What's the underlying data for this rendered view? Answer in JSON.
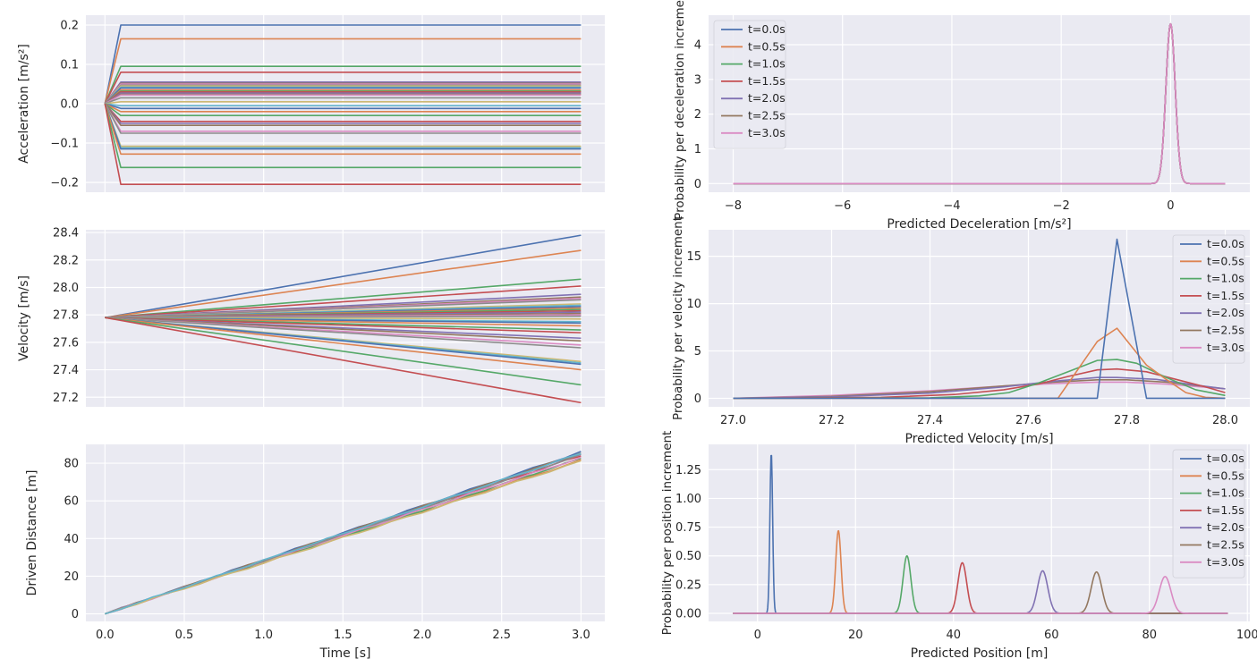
{
  "colors": {
    "palette": [
      "#4c72b0",
      "#dd8452",
      "#55a868",
      "#c44e52",
      "#8172b3",
      "#937860",
      "#da8bc3",
      "#8c8c8c",
      "#ccb974",
      "#64b5cd"
    ],
    "axes_bg": "#eaeaf2",
    "grid": "#ffffff",
    "text": "#262626"
  },
  "chart_data": [
    {
      "id": "acc",
      "type": "line",
      "xlabel": "",
      "ylabel": "Acceleration [m/s²]",
      "xlim": [
        -0.12,
        3.15
      ],
      "ylim": [
        -0.225,
        0.225
      ],
      "xticks": [
        0.0,
        0.5,
        1.0,
        1.5,
        2.0,
        2.5,
        3.0
      ],
      "xtick_labels": [],
      "yticks": [
        -0.2,
        -0.1,
        0.0,
        0.1,
        0.2
      ],
      "ytick_labels": [
        "−0.2",
        "−0.1",
        "0.0",
        "0.1",
        "0.2"
      ],
      "x": [
        0.0,
        0.1,
        3.0
      ],
      "series_levels": [
        0.2,
        0.165,
        0.095,
        0.08,
        0.055,
        0.052,
        0.05,
        0.047,
        0.045,
        0.042,
        0.04,
        0.035,
        0.032,
        0.03,
        0.027,
        0.024,
        0.022,
        0.015,
        0.005,
        -0.005,
        -0.012,
        -0.02,
        -0.03,
        -0.045,
        -0.05,
        -0.055,
        -0.07,
        -0.075,
        -0.108,
        -0.112,
        -0.115,
        -0.128,
        -0.162,
        -0.205
      ]
    },
    {
      "id": "vel",
      "type": "line",
      "xlabel": "",
      "ylabel": "Velocity [m/s]",
      "xlim": [
        -0.12,
        3.15
      ],
      "ylim": [
        27.13,
        28.42
      ],
      "xticks": [
        0.0,
        0.5,
        1.0,
        1.5,
        2.0,
        2.5,
        3.0
      ],
      "xtick_labels": [],
      "yticks": [
        27.2,
        27.4,
        27.6,
        27.8,
        28.0,
        28.2,
        28.4
      ],
      "ytick_labels": [
        "27.2",
        "27.4",
        "27.6",
        "27.8",
        "28.0",
        "28.2",
        "28.4"
      ],
      "v0": 27.78,
      "x": [
        0.0,
        3.0
      ],
      "series_end": [
        28.38,
        28.27,
        28.06,
        28.01,
        27.95,
        27.93,
        27.92,
        27.91,
        27.88,
        27.87,
        27.86,
        27.85,
        27.84,
        27.83,
        27.82,
        27.81,
        27.8,
        27.79,
        27.77,
        27.75,
        27.74,
        27.72,
        27.69,
        27.67,
        27.63,
        27.61,
        27.58,
        27.56,
        27.46,
        27.45,
        27.44,
        27.4,
        27.29,
        27.16
      ]
    },
    {
      "id": "dist",
      "type": "line",
      "xlabel": "Time [s]",
      "ylabel": "Driven Distance [m]",
      "xlim": [
        -0.12,
        3.15
      ],
      "ylim": [
        -4,
        90
      ],
      "xticks": [
        0.0,
        0.5,
        1.0,
        1.5,
        2.0,
        2.5,
        3.0
      ],
      "xtick_labels": [
        "0.0",
        "0.5",
        "1.0",
        "1.5",
        "2.0",
        "2.5",
        "3.0"
      ],
      "yticks": [
        0,
        20,
        40,
        60,
        80
      ],
      "ytick_labels": [
        "0",
        "20",
        "40",
        "60",
        "80"
      ],
      "x": [
        0.0,
        3.0
      ],
      "series_end": [
        86,
        81.5,
        82.5,
        84,
        85,
        85.5,
        83,
        84.5,
        81,
        85.2
      ]
    },
    {
      "id": "decel",
      "type": "line",
      "xlabel": "Predicted Deceleration [m/s²]",
      "ylabel": "Probability per deceleration increment",
      "xlim": [
        -8.45,
        1.45
      ],
      "ylim": [
        -0.25,
        4.85
      ],
      "xticks": [
        -8,
        -6,
        -4,
        -2,
        0
      ],
      "xtick_labels": [
        "−8",
        "−6",
        "−4",
        "−2",
        "0"
      ],
      "yticks": [
        0,
        1,
        2,
        3,
        4
      ],
      "ytick_labels": [
        "0",
        "1",
        "2",
        "3",
        "4"
      ],
      "x_range": [
        -8,
        1
      ],
      "legend_loc": "upper-left",
      "series": [
        {
          "name": "t=0.0s",
          "peak_x": 0.0,
          "peak_y": 4.6,
          "sigma": 0.085
        },
        {
          "name": "t=0.5s",
          "peak_x": 0.0,
          "peak_y": 4.6,
          "sigma": 0.085
        },
        {
          "name": "t=1.0s",
          "peak_x": 0.0,
          "peak_y": 4.6,
          "sigma": 0.085
        },
        {
          "name": "t=1.5s",
          "peak_x": 0.0,
          "peak_y": 4.6,
          "sigma": 0.085
        },
        {
          "name": "t=2.0s",
          "peak_x": 0.0,
          "peak_y": 4.6,
          "sigma": 0.085
        },
        {
          "name": "t=2.5s",
          "peak_x": 0.0,
          "peak_y": 4.6,
          "sigma": 0.085
        },
        {
          "name": "t=3.0s",
          "peak_x": 0.0,
          "peak_y": 4.6,
          "sigma": 0.085
        }
      ]
    },
    {
      "id": "velpdf",
      "type": "line",
      "xlabel": "Predicted Velocity [m/s]",
      "ylabel": "Probability per velocity increment",
      "xlim": [
        26.95,
        28.05
      ],
      "ylim": [
        -0.9,
        17.8
      ],
      "xticks": [
        27.0,
        27.2,
        27.4,
        27.6,
        27.8,
        28.0
      ],
      "xtick_labels": [
        "27.0",
        "27.2",
        "27.4",
        "27.6",
        "27.8",
        "28.0"
      ],
      "yticks": [
        0,
        5,
        10,
        15
      ],
      "ytick_labels": [
        "0",
        "5",
        "10",
        "15"
      ],
      "legend_loc": "upper-right",
      "series": [
        {
          "name": "t=0.0s",
          "points": [
            [
              27.0,
              0
            ],
            [
              27.74,
              0
            ],
            [
              27.78,
              16.8
            ],
            [
              27.84,
              0
            ],
            [
              28.0,
              0
            ]
          ]
        },
        {
          "name": "t=0.5s",
          "points": [
            [
              27.0,
              0
            ],
            [
              27.66,
              0
            ],
            [
              27.74,
              6.0
            ],
            [
              27.78,
              7.4
            ],
            [
              27.84,
              3.5
            ],
            [
              27.88,
              2.0
            ],
            [
              27.92,
              0.6
            ],
            [
              27.96,
              0.1
            ],
            [
              28.0,
              0
            ]
          ]
        },
        {
          "name": "t=1.0s",
          "points": [
            [
              27.0,
              0
            ],
            [
              27.4,
              0.05
            ],
            [
              27.5,
              0.25
            ],
            [
              27.56,
              0.6
            ],
            [
              27.62,
              1.6
            ],
            [
              27.68,
              2.8
            ],
            [
              27.74,
              4.0
            ],
            [
              27.78,
              4.1
            ],
            [
              27.82,
              3.7
            ],
            [
              27.88,
              2.2
            ],
            [
              27.94,
              0.9
            ],
            [
              28.0,
              0.3
            ]
          ]
        },
        {
          "name": "t=1.5s",
          "points": [
            [
              27.0,
              0
            ],
            [
              27.3,
              0.1
            ],
            [
              27.45,
              0.4
            ],
            [
              27.55,
              0.9
            ],
            [
              27.62,
              1.5
            ],
            [
              27.68,
              2.3
            ],
            [
              27.74,
              3.0
            ],
            [
              27.78,
              3.1
            ],
            [
              27.84,
              2.8
            ],
            [
              27.9,
              2.0
            ],
            [
              27.96,
              1.2
            ],
            [
              28.0,
              0.6
            ]
          ]
        },
        {
          "name": "t=2.0s",
          "points": [
            [
              27.0,
              0
            ],
            [
              27.2,
              0.15
            ],
            [
              27.4,
              0.55
            ],
            [
              27.55,
              1.2
            ],
            [
              27.65,
              1.8
            ],
            [
              27.74,
              2.2
            ],
            [
              27.78,
              2.2
            ],
            [
              27.86,
              2.0
            ],
            [
              27.94,
              1.4
            ],
            [
              28.0,
              1.0
            ]
          ]
        },
        {
          "name": "t=2.5s",
          "points": [
            [
              27.0,
              0
            ],
            [
              27.2,
              0.2
            ],
            [
              27.4,
              0.7
            ],
            [
              27.55,
              1.3
            ],
            [
              27.65,
              1.7
            ],
            [
              27.74,
              1.95
            ],
            [
              27.8,
              1.95
            ],
            [
              27.88,
              1.7
            ],
            [
              27.95,
              1.3
            ],
            [
              28.0,
              1.0
            ]
          ]
        },
        {
          "name": "t=3.0s",
          "points": [
            [
              27.0,
              0
            ],
            [
              27.2,
              0.3
            ],
            [
              27.4,
              0.8
            ],
            [
              27.55,
              1.3
            ],
            [
              27.65,
              1.55
            ],
            [
              27.74,
              1.7
            ],
            [
              27.8,
              1.7
            ],
            [
              27.88,
              1.5
            ],
            [
              27.95,
              1.2
            ],
            [
              28.0,
              1.0
            ]
          ]
        }
      ]
    },
    {
      "id": "pos",
      "type": "line",
      "xlabel": "Predicted Position [m]",
      "ylabel": "Probability per position increment",
      "xlim": [
        -10,
        100.5
      ],
      "ylim": [
        -0.07,
        1.47
      ],
      "xticks": [
        0,
        20,
        40,
        60,
        80,
        100
      ],
      "xtick_labels": [
        "0",
        "20",
        "40",
        "60",
        "80",
        "100"
      ],
      "yticks": [
        0.0,
        0.25,
        0.5,
        0.75,
        1.0,
        1.25
      ],
      "ytick_labels": [
        "0.00",
        "0.25",
        "0.50",
        "0.75",
        "1.00",
        "1.25"
      ],
      "x_range": [
        -5,
        96
      ],
      "legend_loc": "upper-right",
      "series": [
        {
          "name": "t=0.0s",
          "peak_x": 2.8,
          "peak_y": 1.4,
          "sigma": 0.28
        },
        {
          "name": "t=0.5s",
          "peak_x": 16.5,
          "peak_y": 0.72,
          "sigma": 0.55
        },
        {
          "name": "t=1.0s",
          "peak_x": 30.5,
          "peak_y": 0.5,
          "sigma": 0.8
        },
        {
          "name": "t=1.5s",
          "peak_x": 41.8,
          "peak_y": 0.44,
          "sigma": 0.9
        },
        {
          "name": "t=2.0s",
          "peak_x": 58.2,
          "peak_y": 0.37,
          "sigma": 1.05
        },
        {
          "name": "t=2.5s",
          "peak_x": 69.2,
          "peak_y": 0.36,
          "sigma": 1.1
        },
        {
          "name": "t=3.0s",
          "peak_x": 83.2,
          "peak_y": 0.32,
          "sigma": 1.2
        }
      ]
    }
  ]
}
